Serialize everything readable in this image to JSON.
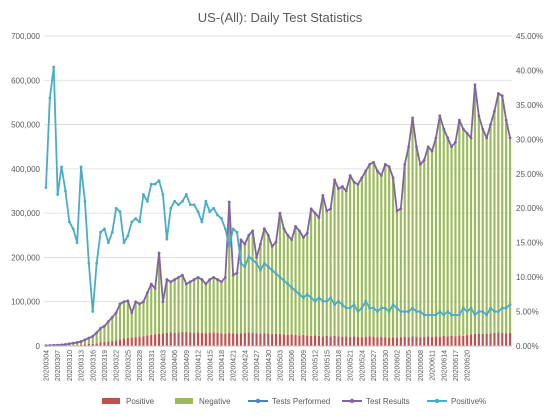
{
  "chart_data": {
    "type": "bar",
    "title": "US-(All): Daily Test Statistics",
    "y_left_ticks": [
      "0",
      "100,000",
      "200,000",
      "300,000",
      "400,000",
      "500,000",
      "600,000",
      "700,000"
    ],
    "y_right_ticks": [
      "0.00%",
      "5.00%",
      "10.00%",
      "15.00%",
      "20.00%",
      "25.00%",
      "30.00%",
      "35.00%",
      "40.00%",
      "45.00%"
    ],
    "ylim_left": [
      0,
      700000
    ],
    "ylim_right": [
      0,
      45
    ],
    "x_tick_labels": [
      "20200304",
      "20200307",
      "20200310",
      "20200313",
      "20200316",
      "20200319",
      "20200322",
      "20200325",
      "20200328",
      "20200331",
      "20200403",
      "20200406",
      "20200409",
      "20200412",
      "20200415",
      "20200418",
      "20200421",
      "20200424",
      "20200427",
      "20200430",
      "20200503",
      "20200506",
      "20200509",
      "20200512",
      "20200515",
      "20200518",
      "20200521",
      "20200524",
      "20200527",
      "20200530",
      "20200602",
      "20200605",
      "20200608",
      "20200611",
      "20200614",
      "20200617",
      "20200620"
    ],
    "x_start": "2020-03-04",
    "legend": [
      "Positive",
      "Negative",
      "Tests Performed",
      "Test Results",
      "Positive%"
    ],
    "colors": {
      "positive": "#c0504d",
      "negative": "#9bbb59",
      "tests_performed": "#4f81bd",
      "test_results": "#8064a2",
      "positive_pct": "#4bacc6"
    },
    "series": [
      {
        "name": "Test Results",
        "axis": "left",
        "values": [
          800,
          1200,
          1600,
          2000,
          2600,
          3500,
          5000,
          6500,
          8000,
          10000,
          14000,
          18000,
          22000,
          30000,
          40000,
          45000,
          55000,
          65000,
          75000,
          95000,
          100000,
          102000,
          75000,
          100000,
          95000,
          100000,
          120000,
          140000,
          130000,
          210000,
          100000,
          150000,
          145000,
          150000,
          155000,
          160000,
          140000,
          145000,
          150000,
          155000,
          150000,
          140000,
          150000,
          155000,
          150000,
          145000,
          155000,
          325000,
          160000,
          165000,
          240000,
          230000,
          250000,
          260000,
          200000,
          230000,
          265000,
          250000,
          225000,
          235000,
          300000,
          265000,
          250000,
          240000,
          270000,
          260000,
          245000,
          255000,
          310000,
          300000,
          290000,
          340000,
          305000,
          310000,
          375000,
          355000,
          360000,
          350000,
          385000,
          370000,
          365000,
          380000,
          395000,
          410000,
          415000,
          395000,
          385000,
          410000,
          405000,
          380000,
          305000,
          310000,
          410000,
          450000,
          515000,
          450000,
          410000,
          420000,
          450000,
          440000,
          470000,
          520000,
          490000,
          470000,
          450000,
          460000,
          510000,
          490000,
          480000,
          470000,
          590000,
          520000,
          490000,
          470000,
          500000,
          530000,
          570000,
          565000,
          510000,
          470000
        ],
        "markers": true
      },
      {
        "name": "Positive%",
        "axis": "right",
        "values": [
          23.0,
          36.0,
          40.5,
          22.0,
          26.0,
          22.5,
          18.0,
          17.0,
          15.0,
          26.0,
          21.0,
          12.0,
          5.0,
          12.0,
          16.5,
          17.0,
          15.0,
          16.5,
          20.0,
          19.5,
          15.0,
          16.0,
          18.0,
          18.5,
          18.0,
          22.0,
          21.0,
          23.5,
          23.5,
          24.0,
          22.0,
          15.5,
          20.0,
          21.0,
          20.5,
          21.0,
          22.0,
          20.5,
          20.5,
          19.5,
          18.0,
          21.0,
          19.5,
          20.0,
          19.0,
          18.5,
          17.0,
          14.5,
          17.0,
          16.5,
          12.0,
          11.5,
          13.0,
          12.5,
          12.0,
          11.0,
          12.0,
          11.5,
          11.0,
          10.5,
          10.0,
          9.5,
          9.0,
          8.5,
          8.0,
          7.5,
          7.0,
          7.5,
          7.0,
          6.5,
          7.0,
          6.5,
          6.5,
          7.0,
          6.0,
          6.5,
          6.0,
          5.5,
          5.5,
          6.0,
          5.0,
          5.5,
          6.5,
          5.5,
          5.5,
          5.0,
          5.5,
          5.5,
          5.0,
          6.0,
          5.5,
          5.0,
          5.0,
          5.0,
          5.5,
          5.0,
          5.0,
          4.5,
          4.5,
          4.5,
          4.5,
          5.0,
          4.5,
          5.0,
          4.5,
          4.5,
          4.5,
          5.5,
          5.0,
          5.5,
          4.5,
          5.0,
          5.0,
          4.5,
          5.5,
          5.0,
          5.0,
          5.5,
          5.5,
          6.0
        ],
        "markers": true
      },
      {
        "name": "Positive",
        "axis": "left",
        "values": [
          200,
          300,
          400,
          500,
          600,
          800,
          1000,
          1500,
          2000,
          3000,
          4000,
          4500,
          5000,
          6000,
          8000,
          9000,
          10000,
          11000,
          13000,
          15000,
          17000,
          18000,
          19000,
          20000,
          21000,
          22000,
          24000,
          25000,
          26000,
          28000,
          29000,
          30000,
          31000,
          30000,
          31000,
          32000,
          32000,
          31000,
          30000,
          31000,
          30000,
          29000,
          30000,
          31000,
          30000,
          29000,
          28000,
          30000,
          29000,
          28000,
          29000,
          30000,
          31000,
          30000,
          29000,
          28000,
          29000,
          28000,
          27000,
          28000,
          27000,
          26000,
          25000,
          26000,
          25000,
          24000,
          25000,
          24000,
          23000,
          24000,
          23000,
          22000,
          23000,
          22000,
          23000,
          22000,
          21000,
          22000,
          21000,
          22000,
          21000,
          20000,
          21000,
          22000,
          21000,
          20000,
          21000,
          20000,
          19000,
          20000,
          19000,
          20000,
          21000,
          20000,
          22000,
          21000,
          20000,
          21000,
          22000,
          21000,
          22000,
          21000,
          23000,
          22000,
          23000,
          22000,
          24000,
          23000,
          25000,
          26000,
          27000,
          28000,
          27000,
          28000,
          29000,
          30000,
          31000,
          30000,
          29000,
          30000
        ]
      },
      {
        "name": "Negative",
        "axis": "left",
        "values": [
          600,
          900,
          1200,
          1500,
          2000,
          2700,
          4000,
          5000,
          6000,
          7000,
          10000,
          13500,
          17000,
          24000,
          32000,
          36000,
          45000,
          54000,
          62000,
          80000,
          83000,
          84000,
          56000,
          80000,
          74000,
          78000,
          96000,
          115000,
          104000,
          182000,
          71000,
          120000,
          114000,
          120000,
          124000,
          128000,
          108000,
          114000,
          120000,
          124000,
          120000,
          111000,
          120000,
          124000,
          120000,
          116000,
          127000,
          295000,
          131000,
          137000,
          211000,
          200000,
          219000,
          230000,
          171000,
          202000,
          236000,
          222000,
          198000,
          207000,
          273000,
          239000,
          225000,
          214000,
          245000,
          236000,
          220000,
          231000,
          287000,
          276000,
          267000,
          318000,
          282000,
          288000,
          352000,
          333000,
          339000,
          328000,
          364000,
          348000,
          344000,
          360000,
          374000,
          388000,
          394000,
          375000,
          364000,
          390000,
          386000,
          360000,
          286000,
          290000,
          389000,
          430000,
          493000,
          429000,
          390000,
          399000,
          428000,
          419000,
          448000,
          499000,
          467000,
          448000,
          427000,
          438000,
          486000,
          467000,
          455000,
          444000,
          563000,
          492000,
          463000,
          442000,
          471000,
          500000,
          539000,
          535000,
          481000,
          440000
        ]
      },
      {
        "name": "Tests Performed",
        "axis": "left",
        "note_hidden": true,
        "values": []
      }
    ]
  }
}
